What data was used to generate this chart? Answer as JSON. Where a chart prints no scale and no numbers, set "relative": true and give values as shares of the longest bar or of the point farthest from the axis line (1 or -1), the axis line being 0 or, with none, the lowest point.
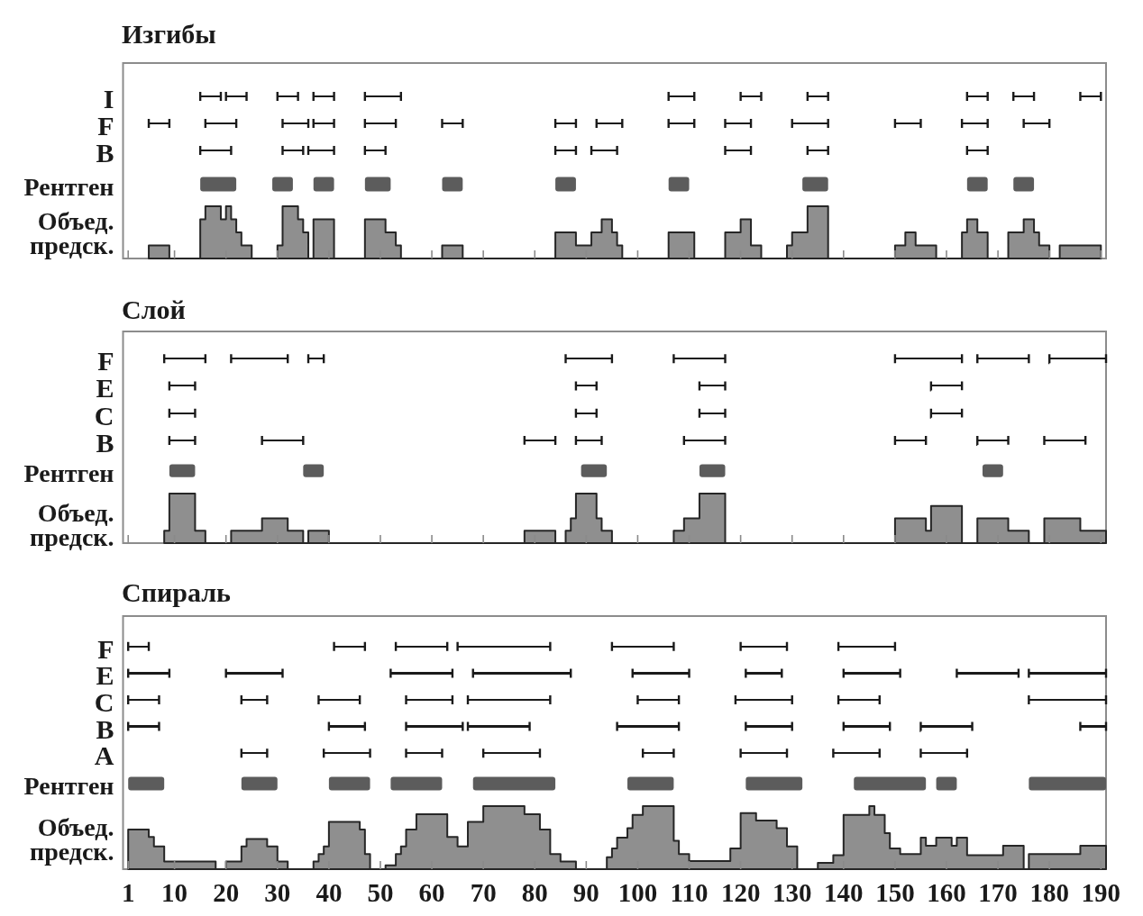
{
  "chart_data": [
    {
      "type": "bar",
      "orientation": "horizontal",
      "title": "Изгибы",
      "categories": [
        "I",
        "F",
        "B"
      ],
      "xlim": [
        0,
        191
      ],
      "tick_labels": "y",
      "series": [
        {
          "color": "#1a1a1a",
          "base": [
            15,
            5,
            15
          ],
          "values": [
            4,
            4,
            6
          ]
        },
        {
          "color": "#1a1a1a",
          "base": [
            20,
            16,
            31
          ],
          "values": [
            4,
            6,
            4
          ]
        },
        {
          "color": "#1a1a1a",
          "base": [
            30,
            31,
            36
          ],
          "values": [
            4,
            5,
            5
          ]
        },
        {
          "color": "#1a1a1a",
          "base": [
            37,
            37,
            47
          ],
          "values": [
            4,
            4,
            4
          ]
        },
        {
          "color": "#1a1a1a",
          "base": [
            47,
            47,
            84
          ],
          "values": [
            7,
            6,
            4
          ]
        },
        {
          "color": "#1a1a1a",
          "base": [
            106,
            62,
            91
          ],
          "values": [
            5,
            4,
            5
          ]
        },
        {
          "color": "#1a1a1a",
          "base": [
            120,
            84,
            117
          ],
          "values": [
            4,
            4,
            5
          ]
        },
        {
          "color": "#1a1a1a",
          "base": [
            133,
            92,
            133
          ],
          "values": [
            4,
            5,
            4
          ]
        },
        {
          "color": "#1a1a1a",
          "base": [
            164,
            106,
            164
          ],
          "values": [
            4,
            5,
            4
          ]
        },
        {
          "color": "#1a1a1a",
          "base": [
            173,
            117,
            null
          ],
          "values": [
            4,
            5,
            null
          ]
        },
        {
          "color": "#1a1a1a",
          "base": [
            186,
            130,
            null
          ],
          "values": [
            4,
            7,
            null
          ]
        },
        {
          "color": "#1a1a1a",
          "base": [
            null,
            150,
            null
          ],
          "values": [
            null,
            5,
            null
          ]
        },
        {
          "color": "#1a1a1a",
          "base": [
            null,
            163,
            null
          ],
          "values": [
            null,
            5,
            null
          ]
        },
        {
          "color": "#1a1a1a",
          "base": [
            null,
            175,
            null
          ],
          "values": [
            null,
            5,
            null
          ]
        }
      ]
    },
    {
      "type": "bar",
      "orientation": "horizontal",
      "categories": [
        "Рентген"
      ],
      "xlim": [
        0,
        191
      ],
      "tick_labels": "y",
      "series": [
        {
          "color": "#5c5c5c",
          "base": [
            15
          ],
          "values": [
            7
          ]
        },
        {
          "color": "#5c5c5c",
          "base": [
            29
          ],
          "values": [
            4
          ]
        },
        {
          "color": "#5c5c5c",
          "base": [
            37
          ],
          "values": [
            4
          ]
        },
        {
          "color": "#5c5c5c",
          "base": [
            47
          ],
          "values": [
            5
          ]
        },
        {
          "color": "#5c5c5c",
          "base": [
            62
          ],
          "values": [
            4
          ]
        },
        {
          "color": "#5c5c5c",
          "base": [
            84
          ],
          "values": [
            4
          ]
        },
        {
          "color": "#5c5c5c",
          "base": [
            106
          ],
          "values": [
            4
          ]
        },
        {
          "color": "#5c5c5c",
          "base": [
            132
          ],
          "values": [
            5
          ]
        },
        {
          "color": "#5c5c5c",
          "base": [
            164
          ],
          "values": [
            4
          ]
        },
        {
          "color": "#5c5c5c",
          "base": [
            173
          ],
          "values": [
            4
          ]
        }
      ]
    },
    {
      "type": "area",
      "relative": true,
      "ylabel": "Объед. предск.",
      "color": "#8f8f8f",
      "xlim": [
        0,
        191
      ],
      "xticks": [
        1,
        10,
        20,
        30,
        40,
        50,
        60,
        70,
        80,
        90,
        100,
        110,
        120,
        130,
        140,
        150,
        160,
        170,
        180,
        190
      ],
      "tick_labels": false,
      "x": [
        5,
        5,
        9,
        9,
        15,
        15,
        16,
        16,
        19,
        19,
        20,
        20,
        21,
        21,
        22,
        22,
        23,
        23,
        25,
        25,
        30,
        30,
        31,
        31,
        34,
        34,
        35,
        35,
        36,
        36,
        37,
        37,
        41,
        41,
        47,
        47,
        51,
        51,
        53,
        53,
        54,
        54,
        62,
        62,
        66,
        66,
        84,
        84,
        88,
        88,
        91,
        91,
        93,
        93,
        95,
        95,
        96,
        96,
        97,
        97,
        106,
        106,
        111,
        111,
        117,
        117,
        120,
        120,
        122,
        122,
        124,
        124,
        129,
        129,
        130,
        130,
        133,
        133,
        137,
        137,
        150,
        150,
        152,
        152,
        154,
        154,
        158,
        158,
        163,
        163,
        164,
        164,
        166,
        166,
        168,
        168,
        172,
        172,
        175,
        175,
        177,
        177,
        178,
        178,
        180,
        180,
        182,
        182,
        190,
        190
      ],
      "values": [
        0,
        0.25,
        0.25,
        0,
        0,
        0.75,
        0.75,
        1,
        1,
        0.75,
        0.75,
        1,
        1,
        0.75,
        0.75,
        0.5,
        0.5,
        0.25,
        0.25,
        0,
        0,
        0.25,
        0.25,
        1,
        1,
        0.75,
        0.75,
        0.5,
        0.5,
        0,
        0,
        0.75,
        0.75,
        0,
        0,
        0.75,
        0.75,
        0.5,
        0.5,
        0.25,
        0.25,
        0,
        0,
        0.25,
        0.25,
        0,
        0,
        0.5,
        0.5,
        0.25,
        0.25,
        0.5,
        0.5,
        0.75,
        0.75,
        0.5,
        0.5,
        0.25,
        0.25,
        0,
        0,
        0.5,
        0.5,
        0,
        0,
        0.5,
        0.5,
        0.75,
        0.75,
        0.25,
        0.25,
        0,
        0,
        0.25,
        0.25,
        0.5,
        0.5,
        1,
        1,
        0,
        0,
        0.25,
        0.25,
        0.5,
        0.5,
        0.25,
        0.25,
        0,
        0,
        0.5,
        0.5,
        0.75,
        0.75,
        0.5,
        0.5,
        0,
        0,
        0.5,
        0.5,
        0.75,
        0.75,
        0.5,
        0.5,
        0.25,
        0.25,
        0,
        0,
        0.25,
        0.25,
        0
      ]
    },
    {
      "type": "bar",
      "orientation": "horizontal",
      "title": "Слой",
      "categories": [
        "F",
        "E",
        "C",
        "B"
      ],
      "xlim": [
        0,
        191
      ],
      "tick_labels": "y",
      "series": [
        {
          "color": "#1a1a1a",
          "base": [
            8,
            9,
            9,
            9
          ],
          "values": [
            8,
            5,
            5,
            5
          ]
        },
        {
          "color": "#1a1a1a",
          "base": [
            21,
            88,
            88,
            27
          ],
          "values": [
            11,
            4,
            4,
            8
          ]
        },
        {
          "color": "#1a1a1a",
          "base": [
            36,
            112,
            112,
            78
          ],
          "values": [
            3,
            5,
            5,
            6
          ]
        },
        {
          "color": "#1a1a1a",
          "base": [
            86,
            157,
            157,
            88
          ],
          "values": [
            9,
            6,
            6,
            5
          ]
        },
        {
          "color": "#1a1a1a",
          "base": [
            107,
            null,
            null,
            109
          ],
          "values": [
            10,
            null,
            null,
            8
          ]
        },
        {
          "color": "#1a1a1a",
          "base": [
            150,
            null,
            null,
            150
          ],
          "values": [
            13,
            null,
            null,
            6
          ]
        },
        {
          "color": "#1a1a1a",
          "base": [
            166,
            null,
            null,
            166
          ],
          "values": [
            10,
            null,
            null,
            6
          ]
        },
        {
          "color": "#1a1a1a",
          "base": [
            180,
            null,
            null,
            179
          ],
          "values": [
            11,
            null,
            null,
            8
          ]
        }
      ]
    },
    {
      "type": "bar",
      "orientation": "horizontal",
      "categories": [
        "Рентген"
      ],
      "xlim": [
        0,
        191
      ],
      "tick_labels": "y",
      "series": [
        {
          "color": "#5c5c5c",
          "base": [
            9
          ],
          "values": [
            5
          ]
        },
        {
          "color": "#5c5c5c",
          "base": [
            35
          ],
          "values": [
            4
          ]
        },
        {
          "color": "#5c5c5c",
          "base": [
            89
          ],
          "values": [
            5
          ]
        },
        {
          "color": "#5c5c5c",
          "base": [
            112
          ],
          "values": [
            5
          ]
        },
        {
          "color": "#5c5c5c",
          "base": [
            167
          ],
          "values": [
            4
          ]
        }
      ]
    },
    {
      "type": "area",
      "relative": true,
      "ylabel": "Объед. предск.",
      "color": "#8f8f8f",
      "xlim": [
        0,
        191
      ],
      "xticks": [
        1,
        10,
        20,
        30,
        40,
        50,
        60,
        70,
        80,
        90,
        100,
        110,
        120,
        130,
        140,
        150,
        160,
        170,
        180,
        190
      ],
      "tick_labels": false,
      "x": [
        8,
        8,
        9,
        9,
        14,
        14,
        16,
        16,
        21,
        21,
        27,
        27,
        32,
        32,
        35,
        35,
        36,
        36,
        40,
        40,
        78,
        78,
        84,
        84,
        86,
        86,
        87,
        87,
        88,
        88,
        92,
        92,
        93,
        93,
        95,
        95,
        107,
        107,
        109,
        109,
        112,
        112,
        117,
        117,
        150,
        150,
        156,
        156,
        157,
        157,
        163,
        163,
        166,
        166,
        172,
        172,
        176,
        176,
        179,
        179,
        186,
        186,
        191,
        191
      ],
      "values": [
        0,
        0.25,
        0.25,
        1,
        1,
        0.25,
        0.25,
        0,
        0,
        0.25,
        0.25,
        0.5,
        0.5,
        0.25,
        0.25,
        0,
        0,
        0.25,
        0.25,
        0,
        0,
        0.25,
        0.25,
        0,
        0,
        0.25,
        0.25,
        0.5,
        0.5,
        1,
        1,
        0.5,
        0.5,
        0.25,
        0.25,
        0,
        0,
        0.25,
        0.25,
        0.5,
        0.5,
        1,
        1,
        0,
        0,
        0.5,
        0.5,
        0.25,
        0.25,
        0.75,
        0.75,
        0,
        0,
        0.5,
        0.5,
        0.25,
        0.25,
        0,
        0,
        0.5,
        0.5,
        0.25,
        0.25,
        0
      ]
    },
    {
      "type": "bar",
      "orientation": "horizontal",
      "title": "Спираль",
      "categories": [
        "F",
        "E",
        "C",
        "B",
        "A"
      ],
      "xlim": [
        0,
        191
      ],
      "tick_labels": "y",
      "series": [
        {
          "color": "#1a1a1a",
          "base": [
            1,
            1,
            1,
            1,
            23
          ],
          "values": [
            4,
            8,
            6,
            6,
            5
          ]
        },
        {
          "color": "#1a1a1a",
          "base": [
            41,
            20,
            23,
            40,
            39
          ],
          "values": [
            6,
            11,
            5,
            7,
            9
          ]
        },
        {
          "color": "#1a1a1a",
          "base": [
            53,
            52,
            38,
            55,
            55
          ],
          "values": [
            10,
            12,
            8,
            11,
            7
          ]
        },
        {
          "color": "#1a1a1a",
          "base": [
            65,
            68,
            55,
            67,
            70
          ],
          "values": [
            18,
            19,
            9,
            12,
            11
          ]
        },
        {
          "color": "#1a1a1a",
          "base": [
            95,
            99,
            67,
            96,
            101
          ],
          "values": [
            12,
            11,
            16,
            12,
            6
          ]
        },
        {
          "color": "#1a1a1a",
          "base": [
            120,
            121,
            100,
            121,
            120
          ],
          "values": [
            9,
            7,
            8,
            9,
            9
          ]
        },
        {
          "color": "#1a1a1a",
          "base": [
            139,
            140,
            119,
            140,
            138
          ],
          "values": [
            11,
            11,
            11,
            9,
            9
          ]
        },
        {
          "color": "#1a1a1a",
          "base": [
            null,
            162,
            139,
            155,
            155
          ],
          "values": [
            null,
            12,
            8,
            10,
            9
          ]
        },
        {
          "color": "#1a1a1a",
          "base": [
            null,
            176,
            176,
            186,
            null
          ],
          "values": [
            null,
            15,
            15,
            5,
            null
          ]
        }
      ]
    },
    {
      "type": "bar",
      "orientation": "horizontal",
      "categories": [
        "Рентген"
      ],
      "xlim": [
        0,
        191
      ],
      "tick_labels": "y",
      "series": [
        {
          "color": "#5c5c5c",
          "base": [
            1
          ],
          "values": [
            7
          ]
        },
        {
          "color": "#5c5c5c",
          "base": [
            23
          ],
          "values": [
            7
          ]
        },
        {
          "color": "#5c5c5c",
          "base": [
            40
          ],
          "values": [
            8
          ]
        },
        {
          "color": "#5c5c5c",
          "base": [
            52
          ],
          "values": [
            10
          ]
        },
        {
          "color": "#5c5c5c",
          "base": [
            68
          ],
          "values": [
            16
          ]
        },
        {
          "color": "#5c5c5c",
          "base": [
            98
          ],
          "values": [
            9
          ]
        },
        {
          "color": "#5c5c5c",
          "base": [
            121
          ],
          "values": [
            11
          ]
        },
        {
          "color": "#5c5c5c",
          "base": [
            142
          ],
          "values": [
            14
          ]
        },
        {
          "color": "#5c5c5c",
          "base": [
            158
          ],
          "values": [
            4
          ]
        },
        {
          "color": "#5c5c5c",
          "base": [
            176
          ],
          "values": [
            15
          ]
        }
      ]
    },
    {
      "type": "area",
      "relative": true,
      "ylabel": "Объед. предск.",
      "color": "#8f8f8f",
      "xlim": [
        0,
        191
      ],
      "xticks": [
        1,
        10,
        20,
        30,
        40,
        50,
        60,
        70,
        80,
        90,
        100,
        110,
        120,
        130,
        140,
        150,
        160,
        170,
        180,
        190
      ],
      "tick_labels": "x",
      "x": [
        1,
        1,
        5,
        5,
        6,
        6,
        8,
        8,
        18,
        18,
        20,
        20,
        23,
        23,
        24,
        24,
        28,
        28,
        30,
        30,
        32,
        32,
        37,
        37,
        38,
        38,
        39,
        39,
        40,
        40,
        46,
        46,
        47,
        47,
        48,
        48,
        51,
        51,
        53,
        53,
        54,
        54,
        55,
        55,
        57,
        57,
        63,
        63,
        65,
        65,
        67,
        67,
        70,
        70,
        78,
        78,
        81,
        81,
        83,
        83,
        85,
        85,
        88,
        88,
        94,
        94,
        95,
        95,
        96,
        96,
        98,
        98,
        99,
        99,
        101,
        101,
        107,
        107,
        108,
        108,
        110,
        110,
        118,
        118,
        120,
        120,
        123,
        123,
        127,
        127,
        129,
        129,
        131,
        131,
        135,
        135,
        138,
        138,
        140,
        140,
        145,
        145,
        146,
        146,
        148,
        148,
        149,
        149,
        151,
        151,
        155,
        155,
        156,
        156,
        158,
        158,
        161,
        161,
        162,
        162,
        164,
        164,
        171,
        171,
        175,
        175,
        176,
        176,
        186,
        186,
        191,
        191
      ],
      "values": [
        0,
        0.63,
        0.63,
        0.51,
        0.51,
        0.36,
        0.36,
        0.12,
        0.12,
        0,
        0,
        0.12,
        0.12,
        0.36,
        0.36,
        0.48,
        0.48,
        0.36,
        0.36,
        0.12,
        0.12,
        0,
        0,
        0.12,
        0.12,
        0.24,
        0.24,
        0.36,
        0.36,
        0.75,
        0.75,
        0.63,
        0.63,
        0.24,
        0.24,
        0,
        0,
        0.06,
        0.06,
        0.24,
        0.24,
        0.36,
        0.36,
        0.63,
        0.63,
        0.87,
        0.87,
        0.51,
        0.51,
        0.36,
        0.36,
        0.75,
        0.75,
        1,
        1,
        0.87,
        0.87,
        0.63,
        0.63,
        0.24,
        0.24,
        0.12,
        0.12,
        0,
        0,
        0.19,
        0.19,
        0.33,
        0.33,
        0.5,
        0.5,
        0.65,
        0.65,
        0.86,
        0.86,
        1,
        1,
        0.45,
        0.45,
        0.24,
        0.24,
        0.13,
        0.13,
        0.33,
        0.33,
        0.89,
        0.89,
        0.77,
        0.77,
        0.65,
        0.65,
        0.36,
        0.36,
        0,
        0,
        0.1,
        0.1,
        0.22,
        0.22,
        0.86,
        0.86,
        1,
        1,
        0.86,
        0.86,
        0.57,
        0.57,
        0.33,
        0.33,
        0.24,
        0.24,
        0.5,
        0.5,
        0.37,
        0.37,
        0.5,
        0.5,
        0.37,
        0.37,
        0.5,
        0.5,
        0.22,
        0.22,
        0.37,
        0.37,
        0,
        0,
        0.24,
        0.24,
        0.37,
        0.37,
        0
      ]
    }
  ]
}
